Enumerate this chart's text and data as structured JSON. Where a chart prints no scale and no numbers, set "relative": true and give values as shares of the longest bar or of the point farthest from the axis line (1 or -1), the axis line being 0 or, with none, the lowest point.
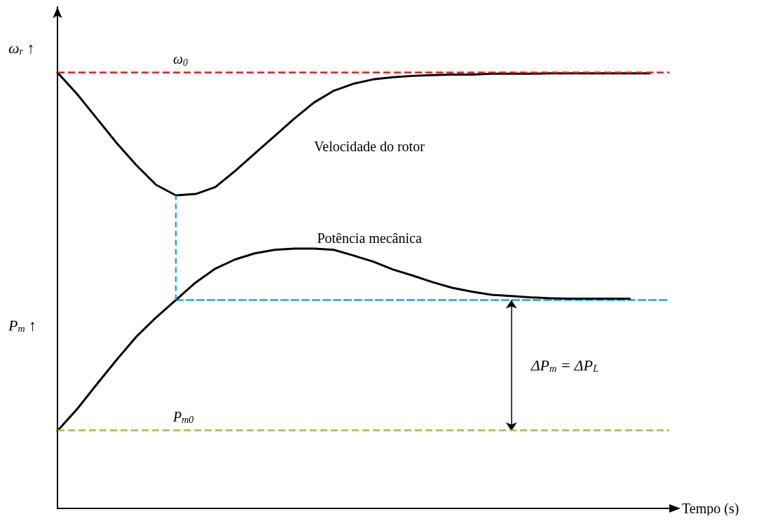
{
  "chart_data": {
    "type": "line",
    "relative": true,
    "legend": false,
    "grid": false,
    "marker": "none",
    "xlabel": "Tempo (s)",
    "ylabel": "ω$_{r}$ ↑",
    "categories": [
      null,
      null,
      null,
      null,
      null,
      null,
      null,
      null,
      null,
      null,
      null,
      null,
      null,
      null,
      null,
      null,
      null,
      null,
      null,
      null,
      null,
      null,
      null,
      null,
      null,
      null,
      null,
      null,
      null,
      null,
      null,
      null
    ],
    "series": [
      {
        "name": "Velocidade do rotor",
        "color": "#000000",
        "values": [
          1.0,
          0.95,
          0.894,
          0.838,
          0.787,
          0.742,
          0.718,
          0.721,
          0.737,
          0.774,
          0.814,
          0.854,
          0.894,
          0.931,
          0.958,
          0.974,
          0.984,
          0.989,
          0.992,
          0.994,
          0.995,
          0.995,
          0.997,
          0.997,
          0.997,
          0.998,
          0.998,
          0.998,
          0.998,
          0.998,
          0.998,
          null
        ]
      },
      {
        "name": "Potência mecânica",
        "color": "#000000",
        "values": [
          0.178,
          0.228,
          0.285,
          0.341,
          0.394,
          0.438,
          0.478,
          0.518,
          0.55,
          0.571,
          0.585,
          0.593,
          0.596,
          0.596,
          0.593,
          0.58,
          0.566,
          0.548,
          0.534,
          0.519,
          0.506,
          0.497,
          0.49,
          0.487,
          0.484,
          0.482,
          0.481,
          0.481,
          0.481,
          0.481,
          null,
          null
        ]
      },
      {
        "color": "#1aa7e0",
        "line_style": "dashed",
        "values": [
          null,
          null,
          null,
          null,
          null,
          null,
          0.478,
          0.478,
          0.478,
          0.478,
          0.478,
          0.478,
          0.478,
          0.478,
          0.478,
          0.478,
          0.478,
          0.478,
          0.478,
          0.478,
          0.478,
          0.478,
          0.478,
          0.478,
          0.478,
          0.478,
          0.478,
          0.478,
          0.478,
          0.478,
          0.478,
          0.478
        ]
      }
    ],
    "ref_lines": [
      {
        "axis": "y",
        "value": 1.0,
        "label": "ω$_{0}$",
        "color": "#e8191c",
        "line_style": "dashed"
      },
      {
        "axis": "y",
        "value": 0.178,
        "label": "P$_{m0}$",
        "color": "#8dc63f",
        "line_style": "dashed"
      }
    ],
    "annotations": [
      "ΔP$_{m}$ = ΔP$_{L}$",
      "P$_{m}$ ↑"
    ]
  }
}
